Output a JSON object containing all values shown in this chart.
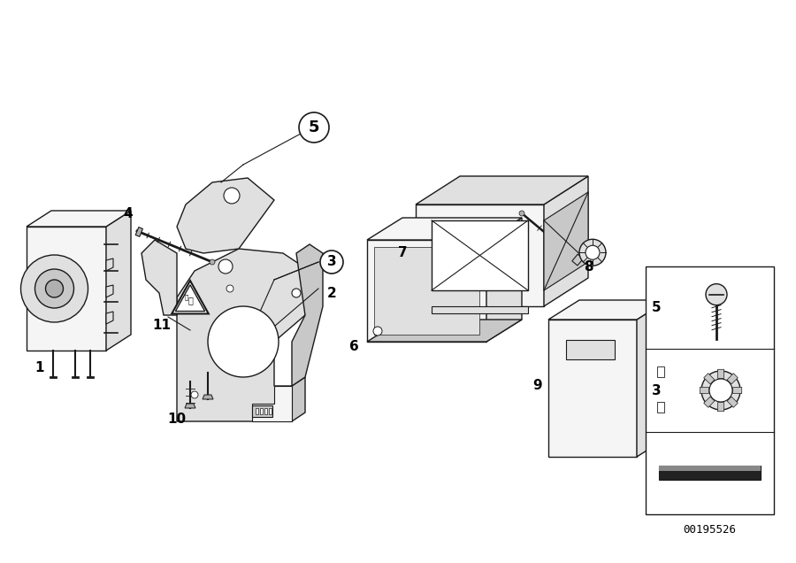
{
  "background_color": "#ffffff",
  "catalog_number": "00195526",
  "figsize": [
    9.0,
    6.36
  ],
  "dpi": 100,
  "line_color": "#1a1a1a",
  "face_light": "#f5f5f5",
  "face_mid": "#e0e0e0",
  "face_dark": "#c8c8c8",
  "face_darker": "#b0b0b0"
}
